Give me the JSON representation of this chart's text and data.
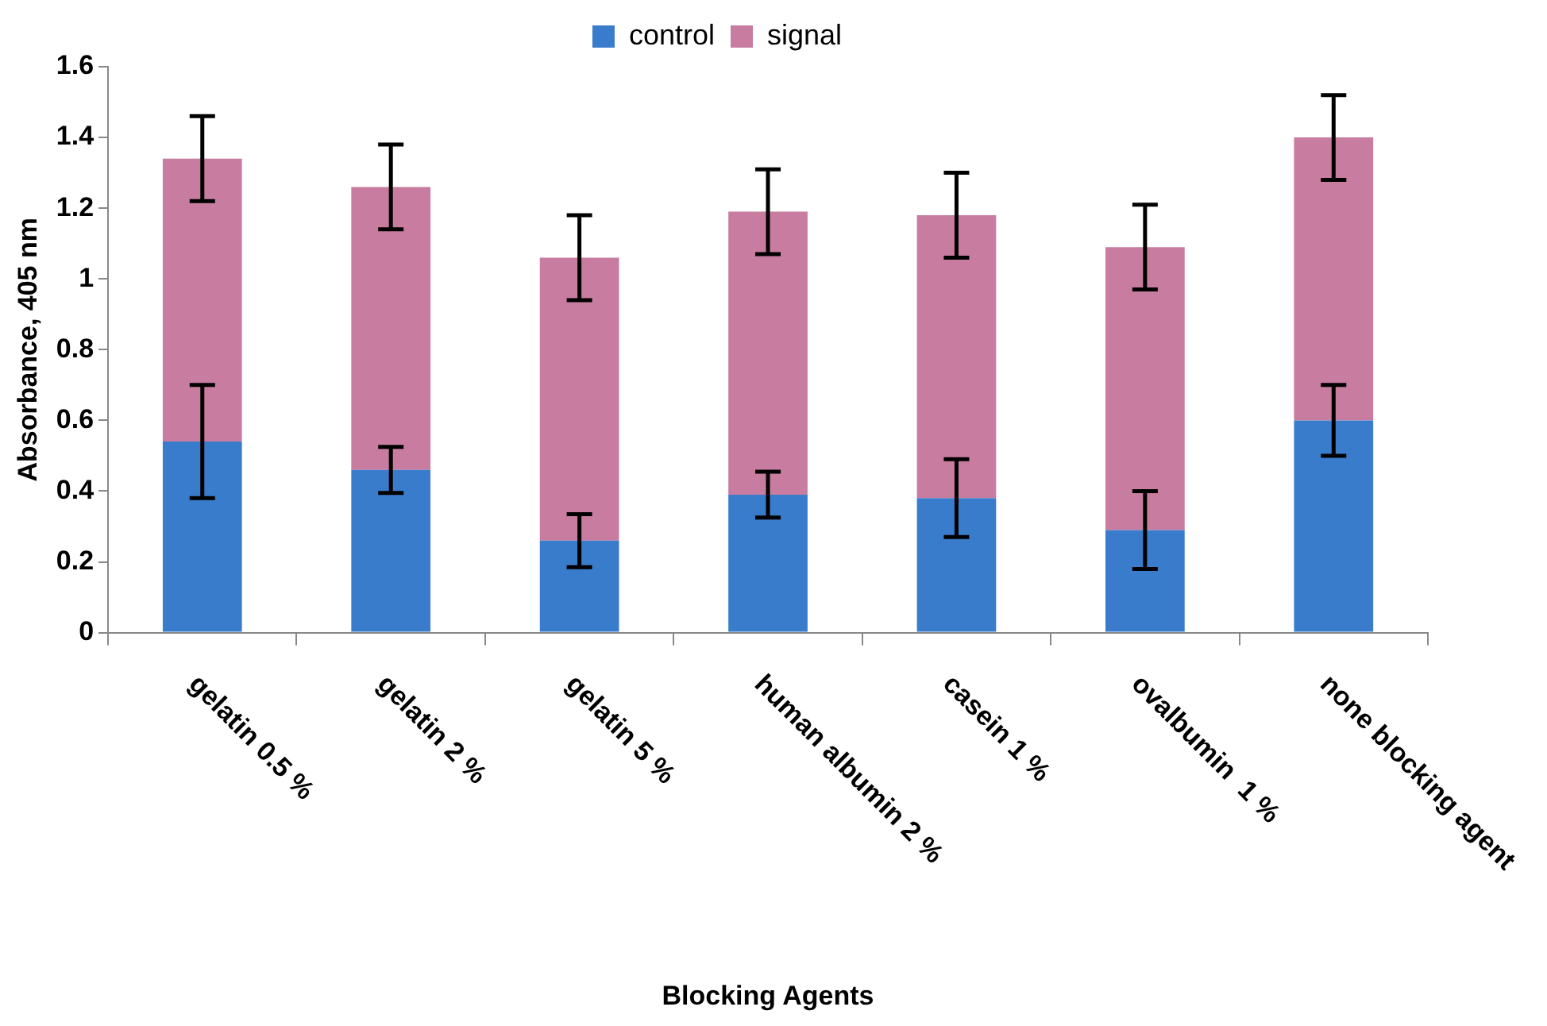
{
  "chart_data": {
    "type": "bar",
    "stacked": true,
    "xlabel": "Blocking Agents",
    "ylabel": "Absorbance, 405 nm",
    "categories": [
      "gelatin 0.5 %",
      "gelatin 2 %",
      "gelatin 5 %",
      "human albumin 2 %",
      "casein 1 %",
      "ovalbumin  1 %",
      "none blocking agent"
    ],
    "series": [
      {
        "name": "control",
        "color": "#3a7ccc",
        "values": [
          0.54,
          0.46,
          0.26,
          0.39,
          0.38,
          0.29,
          0.6
        ],
        "errors": [
          0.16,
          0.065,
          0.075,
          0.065,
          0.11,
          0.11,
          0.1
        ]
      },
      {
        "name": "signal",
        "color": "#c77ca0",
        "values": [
          0.8,
          0.8,
          0.8,
          0.8,
          0.8,
          0.8,
          0.8
        ],
        "errors": [
          0.12,
          0.12,
          0.12,
          0.12,
          0.12,
          0.12,
          0.12
        ]
      }
    ],
    "ylim": [
      0,
      1.6
    ],
    "yticks": [
      0,
      0.2,
      0.4,
      0.6,
      0.8,
      1,
      1.2,
      1.4,
      1.6
    ],
    "grid": false,
    "legend": "top"
  }
}
